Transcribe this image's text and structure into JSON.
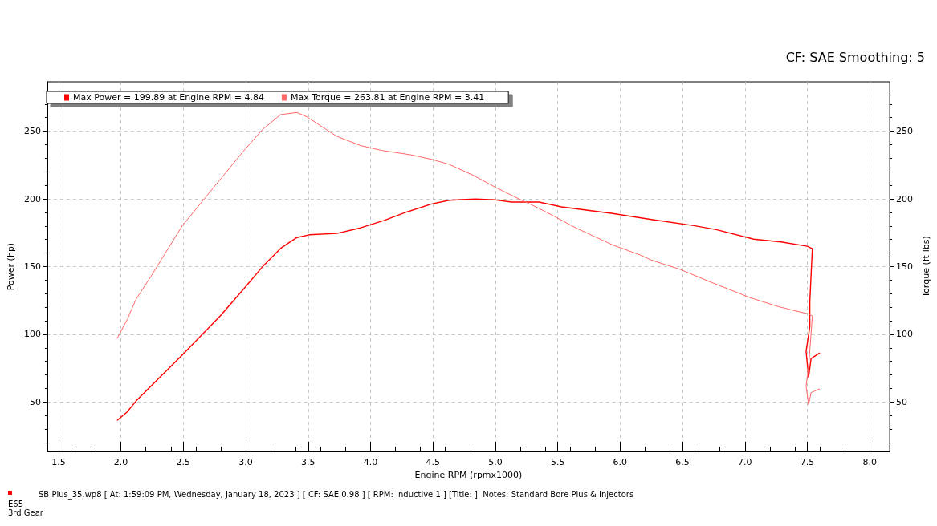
{
  "chart_data": {
    "type": "line",
    "xlabel": "Engine RPM (rpmx1000)",
    "ylabel": "Power (hp)",
    "y2label": "Torque (ft-lbs)",
    "xlim": [
      1.41,
      8.16
    ],
    "xticks": [
      1.5,
      {
        "value": 2,
        "label": "2.0"
      },
      2.5,
      {
        "value": 3,
        "label": "3.0"
      },
      3.5,
      {
        "value": 4,
        "label": "4.0"
      },
      4.5,
      {
        "value": 5,
        "label": "5.0"
      },
      5.5,
      {
        "value": 6,
        "label": "6.0"
      },
      6.5,
      {
        "value": 7,
        "label": "7.0"
      },
      7.5,
      {
        "value": 8,
        "label": "8.0"
      }
    ],
    "ylim": [
      13.5,
      286.5
    ],
    "yticks": [
      50,
      100,
      150,
      200,
      250
    ],
    "y2lim": [
      13.5,
      286.5
    ],
    "y2ticks": [
      50,
      100,
      150,
      200,
      250
    ],
    "grid": true,
    "legend": "top left",
    "series": [
      {
        "name": "Max Power = 199.89 at Engine RPM = 4.84",
        "color": "#ff0000",
        "x": [
          1.97,
          2.05,
          2.12,
          2.49,
          2.8,
          2.99,
          3.14,
          3.28,
          3.41,
          3.51,
          3.73,
          3.92,
          4.11,
          4.28,
          4.49,
          4.63,
          4.84,
          4.99,
          5.13,
          5.35,
          5.53,
          5.94,
          6.25,
          6.59,
          6.77,
          7.07,
          7.29,
          7.5,
          7.54,
          7.52,
          7.52,
          7.49,
          7.51,
          7.53,
          7.6
        ],
        "values": [
          36.4,
          42.7,
          50.6,
          84.6,
          114,
          134.2,
          150.5,
          163.5,
          171.5,
          173.5,
          174.5,
          178.6,
          184.1,
          190,
          196.3,
          199,
          199.9,
          199.4,
          197.7,
          197.7,
          194.1,
          189.2,
          184.8,
          180.3,
          177.3,
          170.3,
          168.2,
          165,
          163.3,
          124.6,
          105.5,
          87.4,
          68.3,
          82.1,
          86.3
        ]
      },
      {
        "name": "Max Torque = 263.81 at Engine RPM = 3.41",
        "color": "#ff6666",
        "axis": "y2",
        "x": [
          1.97,
          2.05,
          2.12,
          2.24,
          2.49,
          2.8,
          2.99,
          3.14,
          3.28,
          3.41,
          3.49,
          3.73,
          3.92,
          4.09,
          4.32,
          4.49,
          4.63,
          4.83,
          5,
          5.14,
          5.35,
          5.49,
          5.64,
          5.94,
          6.16,
          6.25,
          6.48,
          6.7,
          7.04,
          7.27,
          7.44,
          7.51,
          7.54,
          7.51,
          7.49,
          7.51,
          7.53,
          7.6
        ],
        "values": [
          97,
          110.8,
          125.7,
          142.7,
          179.9,
          214.9,
          236.2,
          251.7,
          262.3,
          263.8,
          260.6,
          246.2,
          239.4,
          235.8,
          232.6,
          229.2,
          225.5,
          217.1,
          208.6,
          202.2,
          193,
          186.3,
          178.8,
          166,
          158.6,
          154.8,
          148,
          139.5,
          127.1,
          120.4,
          116.5,
          115,
          113.5,
          75.7,
          61.8,
          48,
          56.9,
          59.8
        ]
      }
    ],
    "annotations": [
      "CF: SAE Smoothing: 5",
      "SB Plus_35.wp8 [ At: 1:59:09 PM, Wednesday, January 18, 2023 ] [ CF: SAE 0.98 ] [ RPM: Inductive 1 ] [Title: ]  Notes: Standard Bore Plus & Injectors",
      "E65",
      "3rd Gear"
    ]
  }
}
